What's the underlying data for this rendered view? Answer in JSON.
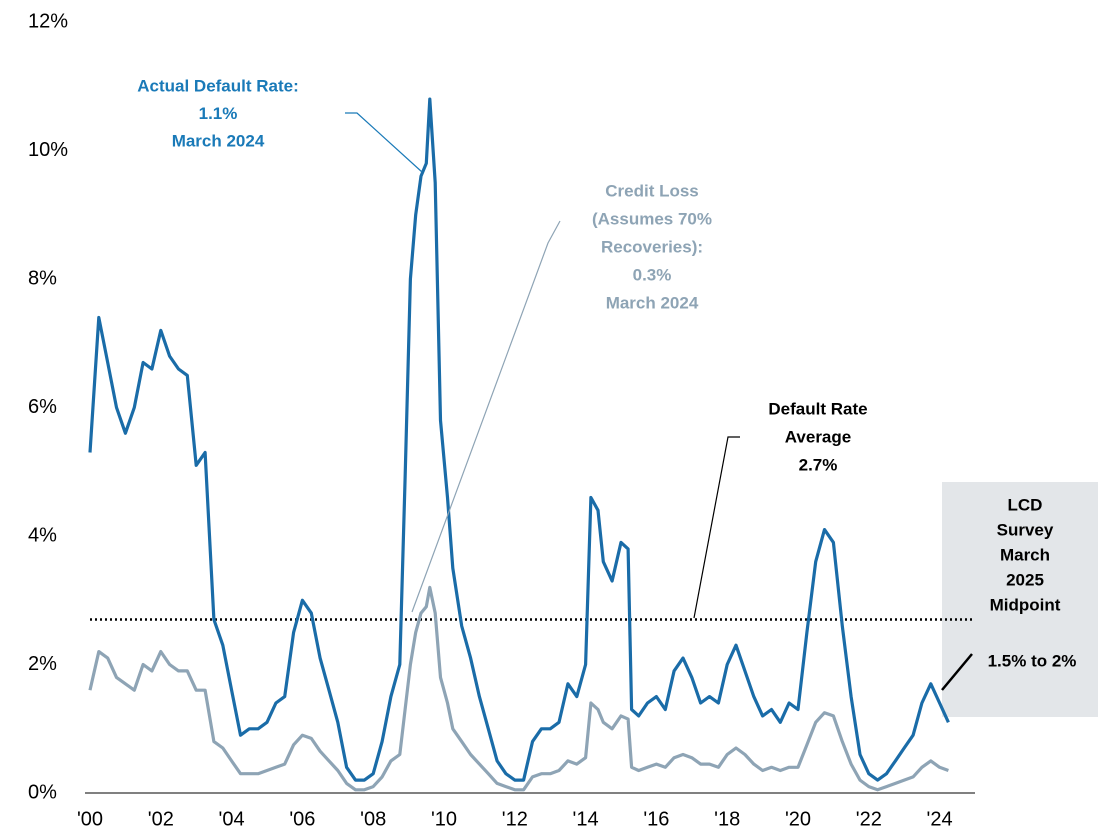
{
  "chart_data": {
    "type": "line",
    "x": [
      2000.0,
      2000.25,
      2000.5,
      2000.75,
      2001.0,
      2001.25,
      2001.5,
      2001.75,
      2002.0,
      2002.25,
      2002.5,
      2002.75,
      2003.0,
      2003.25,
      2003.5,
      2003.75,
      2004.0,
      2004.25,
      2004.5,
      2004.75,
      2005.0,
      2005.25,
      2005.5,
      2005.75,
      2006.0,
      2006.25,
      2006.5,
      2006.75,
      2007.0,
      2007.25,
      2007.5,
      2007.75,
      2008.0,
      2008.25,
      2008.5,
      2008.75,
      2008.9,
      2009.05,
      2009.2,
      2009.35,
      2009.5,
      2009.6,
      2009.75,
      2009.9,
      2010.1,
      2010.25,
      2010.5,
      2010.75,
      2011.0,
      2011.25,
      2011.5,
      2011.75,
      2012.0,
      2012.25,
      2012.5,
      2012.75,
      2013.0,
      2013.25,
      2013.5,
      2013.75,
      2014.0,
      2014.15,
      2014.35,
      2014.5,
      2014.75,
      2015.0,
      2015.2,
      2015.3,
      2015.5,
      2015.75,
      2016.0,
      2016.25,
      2016.5,
      2016.75,
      2017.0,
      2017.25,
      2017.5,
      2017.75,
      2018.0,
      2018.25,
      2018.5,
      2018.75,
      2019.0,
      2019.25,
      2019.5,
      2019.75,
      2020.0,
      2020.25,
      2020.5,
      2020.75,
      2021.0,
      2021.25,
      2021.5,
      2021.75,
      2022.0,
      2022.25,
      2022.5,
      2022.75,
      2023.0,
      2023.25,
      2023.5,
      2023.75,
      2024.0,
      2024.25
    ],
    "series": [
      {
        "name": "Actual Default Rate",
        "color": "#1a6ca8",
        "values": [
          5.3,
          7.4,
          6.7,
          6.0,
          5.6,
          6.0,
          6.7,
          6.6,
          7.2,
          6.8,
          6.6,
          6.5,
          5.1,
          5.3,
          2.7,
          2.3,
          1.6,
          0.9,
          1.0,
          1.0,
          1.1,
          1.4,
          1.5,
          2.5,
          3.0,
          2.8,
          2.1,
          1.6,
          1.1,
          0.4,
          0.2,
          0.2,
          0.3,
          0.8,
          1.5,
          2.0,
          4.9,
          8.0,
          9.0,
          9.6,
          9.8,
          10.8,
          9.5,
          5.8,
          4.6,
          3.5,
          2.6,
          2.1,
          1.5,
          1.0,
          0.5,
          0.3,
          0.2,
          0.2,
          0.8,
          1.0,
          1.0,
          1.1,
          1.7,
          1.5,
          2.0,
          4.6,
          4.4,
          3.6,
          3.3,
          3.9,
          3.8,
          1.3,
          1.2,
          1.4,
          1.5,
          1.3,
          1.9,
          2.1,
          1.8,
          1.4,
          1.5,
          1.4,
          2.0,
          2.3,
          1.9,
          1.5,
          1.2,
          1.3,
          1.1,
          1.4,
          1.3,
          2.5,
          3.6,
          4.1,
          3.9,
          2.6,
          1.5,
          0.6,
          0.3,
          0.2,
          0.3,
          0.5,
          0.7,
          0.9,
          1.4,
          1.7,
          1.4,
          1.1
        ]
      },
      {
        "name": "Credit Loss",
        "color": "#8ea4b5",
        "values": [
          1.6,
          2.2,
          2.1,
          1.8,
          1.7,
          1.6,
          2.0,
          1.9,
          2.2,
          2.0,
          1.9,
          1.9,
          1.6,
          1.6,
          0.8,
          0.7,
          0.5,
          0.3,
          0.3,
          0.3,
          0.35,
          0.4,
          0.45,
          0.75,
          0.9,
          0.85,
          0.65,
          0.5,
          0.35,
          0.15,
          0.05,
          0.05,
          0.1,
          0.25,
          0.5,
          0.6,
          1.3,
          2.0,
          2.5,
          2.8,
          2.9,
          3.2,
          2.8,
          1.8,
          1.4,
          1.0,
          0.8,
          0.6,
          0.45,
          0.3,
          0.15,
          0.1,
          0.05,
          0.05,
          0.25,
          0.3,
          0.3,
          0.35,
          0.5,
          0.45,
          0.55,
          1.4,
          1.3,
          1.1,
          1.0,
          1.2,
          1.15,
          0.4,
          0.35,
          0.4,
          0.45,
          0.4,
          0.55,
          0.6,
          0.55,
          0.45,
          0.45,
          0.4,
          0.6,
          0.7,
          0.6,
          0.45,
          0.35,
          0.4,
          0.35,
          0.4,
          0.4,
          0.75,
          1.1,
          1.25,
          1.2,
          0.8,
          0.45,
          0.2,
          0.1,
          0.05,
          0.1,
          0.15,
          0.2,
          0.25,
          0.4,
          0.5,
          0.4,
          0.35
        ]
      }
    ],
    "average": 2.7,
    "xlim": [
      2000,
      2025
    ],
    "ylim": [
      0,
      12
    ],
    "xticks": [
      {
        "value": 2000,
        "label": "'00"
      },
      {
        "value": 2002,
        "label": "'02"
      },
      {
        "value": 2004,
        "label": "'04"
      },
      {
        "value": 2006,
        "label": "'06"
      },
      {
        "value": 2008,
        "label": "'08"
      },
      {
        "value": 2010,
        "label": "'10"
      },
      {
        "value": 2012,
        "label": "'12"
      },
      {
        "value": 2014,
        "label": "'14"
      },
      {
        "value": 2016,
        "label": "'16"
      },
      {
        "value": 2018,
        "label": "'18"
      },
      {
        "value": 2020,
        "label": "'20"
      },
      {
        "value": 2022,
        "label": "'22"
      },
      {
        "value": 2024,
        "label": "'24"
      }
    ],
    "yticks": [
      {
        "value": 0,
        "label": "0%"
      },
      {
        "value": 2,
        "label": "2%"
      },
      {
        "value": 4,
        "label": "4%"
      },
      {
        "value": 6,
        "label": "6%"
      },
      {
        "value": 8,
        "label": "8%"
      },
      {
        "value": 10,
        "label": "10%"
      },
      {
        "value": 12,
        "label": "12%"
      }
    ],
    "annotations": [
      {
        "lines": [
          "Actual Default Rate:",
          "1.1%",
          "March 2024"
        ],
        "color": "#1a7ab8"
      },
      {
        "lines": [
          "Credit Loss",
          "(Assumes 70%",
          "Recoveries):",
          "0.3%",
          "March 2024"
        ],
        "color": "#8ea4b5"
      },
      {
        "lines": [
          "Default Rate",
          "Average",
          "2.7%"
        ],
        "color": "#000000"
      }
    ],
    "survey_box": {
      "lines": [
        "LCD",
        "Survey",
        "March",
        "2025",
        "Midpoint"
      ],
      "range": "1.5% to 2%"
    }
  }
}
